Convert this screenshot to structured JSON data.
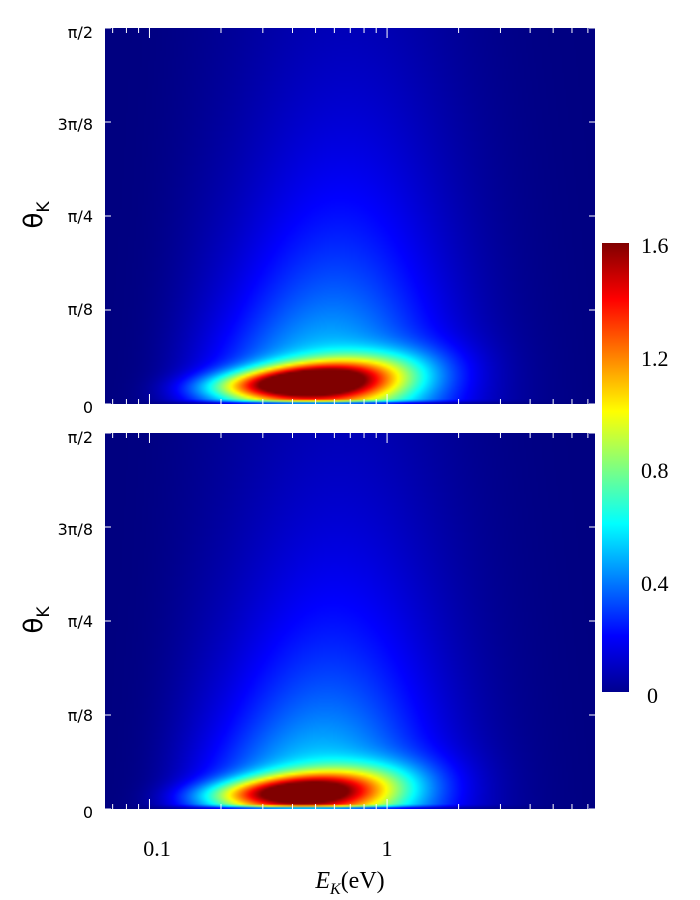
{
  "chart_data": {
    "type": "heatmap",
    "x_label_var": "E",
    "x_label_sub": "K",
    "x_label_unit": "(eV)",
    "x_scale": "log",
    "x_range_eV": [
      0.065,
      7.5
    ],
    "x_tick_labels": [
      {
        "value": 0.1,
        "label": "0.1"
      },
      {
        "value": 1,
        "label": "1"
      }
    ],
    "y_label_var": "θ",
    "y_label_sub": "K",
    "y_range": [
      0,
      1.5708
    ],
    "y_tick_labels": [
      {
        "value": 0,
        "label": "0"
      },
      {
        "value": 0.3927,
        "label": "π/8"
      },
      {
        "value": 0.7854,
        "label": "π/4"
      },
      {
        "value": 1.1781,
        "label": "3π/8"
      },
      {
        "value": 1.5708,
        "label": "π/2"
      }
    ],
    "colorbar": {
      "colormap": "jet",
      "range": [
        0,
        1.6
      ],
      "tick_labels": [
        {
          "value": 0,
          "label": "0"
        },
        {
          "value": 0.4,
          "label": "0.4"
        },
        {
          "value": 0.8,
          "label": "0.8"
        },
        {
          "value": 1.2,
          "label": "1.2"
        },
        {
          "value": 1.6,
          "label": "1.6"
        }
      ]
    },
    "panels": [
      {
        "id": "top",
        "peak_value": 1.55,
        "peak_energy_eV": 0.45,
        "peak_theta": 0.09
      },
      {
        "id": "bottom",
        "peak_value": 1.3,
        "peak_energy_eV": 0.42,
        "peak_theta": 0.07
      }
    ]
  }
}
